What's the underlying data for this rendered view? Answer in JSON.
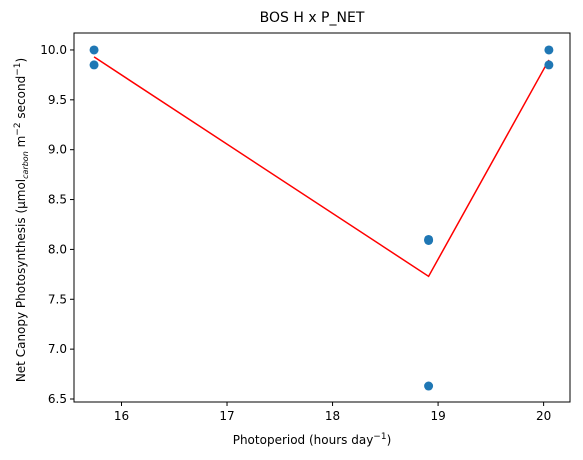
{
  "chart_data": {
    "type": "scatter",
    "title": "BOS H x P_NET",
    "xlabel": {
      "text": "Photoperiod (hours day",
      "sup": "−1",
      "suffix": ")"
    },
    "ylabel": {
      "text": "Net Canopy Photosynthesis (μmol",
      "sub": "carbon",
      "mid1": " m",
      "sup1": "−2",
      "mid2": " second",
      "sup2": "−1",
      "suffix": ")"
    },
    "xlim": [
      15.55,
      20.25
    ],
    "ylim": [
      6.47,
      10.17
    ],
    "xticks": [
      {
        "value": 16,
        "label": "16"
      },
      {
        "value": 17,
        "label": "17"
      },
      {
        "value": 18,
        "label": "18"
      },
      {
        "value": 19,
        "label": "19"
      },
      {
        "value": 20,
        "label": "20"
      }
    ],
    "yticks": [
      {
        "value": 6.5,
        "label": "6.5"
      },
      {
        "value": 7.0,
        "label": "7.0"
      },
      {
        "value": 7.5,
        "label": "7.5"
      },
      {
        "value": 8.0,
        "label": "8.0"
      },
      {
        "value": 8.5,
        "label": "8.5"
      },
      {
        "value": 9.0,
        "label": "9.0"
      },
      {
        "value": 9.5,
        "label": "9.5"
      },
      {
        "value": 10.0,
        "label": "10.0"
      }
    ],
    "points": [
      {
        "x": 15.74,
        "y": 10.0
      },
      {
        "x": 15.74,
        "y": 9.85
      },
      {
        "x": 18.91,
        "y": 8.1
      },
      {
        "x": 18.91,
        "y": 8.09
      },
      {
        "x": 18.91,
        "y": 6.63
      },
      {
        "x": 20.05,
        "y": 10.0
      },
      {
        "x": 20.05,
        "y": 9.85
      }
    ],
    "fit_line": [
      {
        "x": 15.74,
        "y": 9.93
      },
      {
        "x": 18.91,
        "y": 7.73
      },
      {
        "x": 20.05,
        "y": 9.9
      }
    ],
    "point_color": "#1f77b4",
    "line_color": "#ff0000",
    "grid": false,
    "legend": "none"
  }
}
